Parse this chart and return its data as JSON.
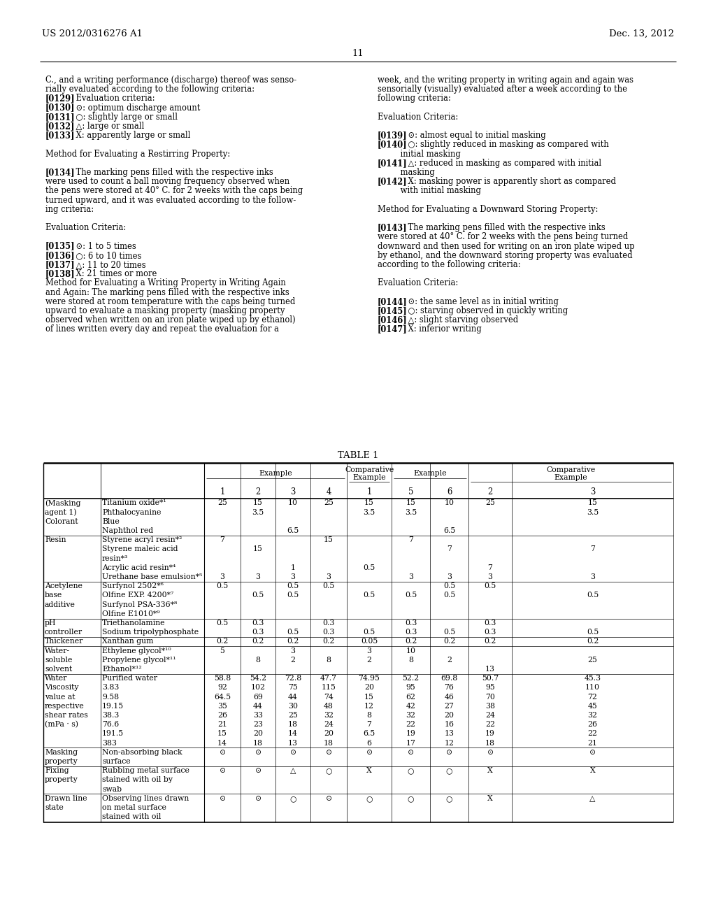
{
  "patent_number": "US 2012/0316276 A1",
  "date": "Dec. 13, 2012",
  "page_number": "11",
  "bg": "#ffffff",
  "left_col": [
    [
      "C., and a writing performance (discharge) thereof was senso-",
      "normal"
    ],
    [
      "rially evaluated according to the following criteria:",
      "normal"
    ],
    [
      "[0129]    Evaluation criteria:",
      "bold_bracket"
    ],
    [
      "[0130]    ⊙: optimum discharge amount",
      "bold_bracket"
    ],
    [
      "[0131]    ○: slightly large or small",
      "bold_bracket"
    ],
    [
      "[0132]    △: large or small",
      "bold_bracket"
    ],
    [
      "[0133]    X: apparently large or small",
      "bold_bracket"
    ],
    [
      "",
      "normal"
    ],
    [
      "Method for Evaluating a Restirring Property:",
      "normal"
    ],
    [
      "",
      "normal"
    ],
    [
      "[0134]    The marking pens filled with the respective inks",
      "bold_bracket"
    ],
    [
      "were used to count a ball moving frequency observed when",
      "normal"
    ],
    [
      "the pens were stored at 40° C. for 2 weeks with the caps being",
      "normal"
    ],
    [
      "turned upward, and it was evaluated according to the follow-",
      "normal"
    ],
    [
      "ing criteria:",
      "normal"
    ],
    [
      "",
      "normal"
    ],
    [
      "Evaluation Criteria:",
      "normal"
    ],
    [
      "",
      "normal"
    ],
    [
      "[0135]    ⊙: 1 to 5 times",
      "bold_bracket"
    ],
    [
      "[0136]    ○: 6 to 10 times",
      "bold_bracket"
    ],
    [
      "[0137]    △: 11 to 20 times",
      "bold_bracket"
    ],
    [
      "[0138]    X: 21 times or more",
      "bold_bracket"
    ],
    [
      "Method for Evaluating a Writing Property in Writing Again",
      "normal"
    ],
    [
      "and Again: The marking pens filled with the respective inks",
      "normal"
    ],
    [
      "were stored at room temperature with the caps being turned",
      "normal"
    ],
    [
      "upward to evaluate a masking property (masking property",
      "normal"
    ],
    [
      "observed when written on an iron plate wiped up by ethanol)",
      "normal"
    ],
    [
      "of lines written every day and repeat the evaluation for a",
      "normal"
    ]
  ],
  "right_col": [
    [
      "week, and the writing property in writing again and again was",
      "normal"
    ],
    [
      "sensorially (visually) evaluated after a week according to the",
      "normal"
    ],
    [
      "following criteria:",
      "normal"
    ],
    [
      "",
      "normal"
    ],
    [
      "Evaluation Criteria:",
      "normal"
    ],
    [
      "",
      "normal"
    ],
    [
      "[0139]    ⊙: almost equal to initial masking",
      "bold_bracket"
    ],
    [
      "[0140]    ○: slightly reduced in masking as compared with",
      "bold_bracket"
    ],
    [
      "         initial masking",
      "normal"
    ],
    [
      "[0141]    △: reduced in masking as compared with initial",
      "bold_bracket"
    ],
    [
      "         masking",
      "normal"
    ],
    [
      "[0142]    X: masking power is apparently short as compared",
      "bold_bracket"
    ],
    [
      "         with initial masking",
      "normal"
    ],
    [
      "",
      "normal"
    ],
    [
      "Method for Evaluating a Downward Storing Property:",
      "normal"
    ],
    [
      "",
      "normal"
    ],
    [
      "[0143]    The marking pens filled with the respective inks",
      "bold_bracket"
    ],
    [
      "were stored at 40° C. for 2 weeks with the pens being turned",
      "normal"
    ],
    [
      "downward and then used for writing on an iron plate wiped up",
      "normal"
    ],
    [
      "by ethanol, and the downward storing property was evaluated",
      "normal"
    ],
    [
      "according to the following criteria:",
      "normal"
    ],
    [
      "",
      "normal"
    ],
    [
      "Evaluation Criteria:",
      "normal"
    ],
    [
      "",
      "normal"
    ],
    [
      "[0144]    ⊙: the same level as in initial writing",
      "bold_bracket"
    ],
    [
      "[0145]    ○: starving observed in quickly writing",
      "bold_bracket"
    ],
    [
      "[0146]    △: slight starving observed",
      "bold_bracket"
    ],
    [
      "[0147]    X: inferior writing",
      "bold_bracket"
    ]
  ],
  "table_title": "TABLE 1",
  "col_nums": [
    "1",
    "2",
    "3",
    "4",
    "1",
    "5",
    "6",
    "2",
    "3"
  ],
  "table_rows": [
    {
      "l1": "(Masking",
      "l2": "Titanium oxide*¹",
      "v": [
        "25",
        "15",
        "10",
        "25",
        "15",
        "15",
        "10",
        "25",
        "15"
      ]
    },
    {
      "l1": "agent 1)",
      "l2": "Phthalocyanine",
      "v": [
        "",
        "3.5",
        "",
        "",
        "3.5",
        "3.5",
        "",
        "",
        "3.5"
      ]
    },
    {
      "l1": "Colorant",
      "l2": "Blue",
      "v": [
        "",
        "",
        "",
        "",
        "",
        "",
        "",
        "",
        ""
      ]
    },
    {
      "l1": "",
      "l2": "Naphthol red",
      "v": [
        "",
        "",
        "6.5",
        "",
        "",
        "",
        "6.5",
        "",
        ""
      ]
    },
    {
      "l1": "Resin",
      "l2": "Styrene acryl resin*²",
      "v": [
        "7",
        "",
        "",
        "15",
        "",
        "7",
        "",
        "",
        ""
      ]
    },
    {
      "l1": "",
      "l2": "Styrene maleic acid",
      "v": [
        "",
        "15",
        "",
        "",
        "",
        "",
        "7",
        "",
        "7"
      ]
    },
    {
      "l1": "",
      "l2": "resin*³",
      "v": [
        "",
        "",
        "",
        "",
        "",
        "",
        "",
        "",
        ""
      ]
    },
    {
      "l1": "",
      "l2": "Acrylic acid resin*⁴",
      "v": [
        "",
        "",
        "1",
        "",
        "0.5",
        "",
        "",
        "7",
        ""
      ]
    },
    {
      "l1": "",
      "l2": "Urethane base emulsion*⁵",
      "v": [
        "3",
        "3",
        "3",
        "3",
        "",
        "3",
        "3",
        "3",
        "3"
      ]
    },
    {
      "l1": "Acetylene",
      "l2": "Surfynol 2502*⁶",
      "v": [
        "0.5",
        "",
        "0.5",
        "0.5",
        "",
        "",
        "0.5",
        "0.5",
        ""
      ]
    },
    {
      "l1": "base",
      "l2": "Olfine EXP. 4200*⁷",
      "v": [
        "",
        "0.5",
        "0.5",
        "",
        "0.5",
        "0.5",
        "0.5",
        "",
        "0.5"
      ]
    },
    {
      "l1": "additive",
      "l2": "Surfynol PSA-336*⁸",
      "v": [
        "",
        "",
        "",
        "",
        "",
        "",
        "",
        "",
        ""
      ]
    },
    {
      "l1": "",
      "l2": "Olfine E1010*⁹",
      "v": [
        "",
        "",
        "",
        "",
        "",
        "",
        "",
        "",
        ""
      ]
    },
    {
      "l1": "pH",
      "l2": "Triethanolamine",
      "v": [
        "0.5",
        "0.3",
        "",
        "0.3",
        "",
        "0.3",
        "",
        "0.3",
        ""
      ]
    },
    {
      "l1": "controller",
      "l2": "Sodium tripolyphosphate",
      "v": [
        "",
        "0.3",
        "0.5",
        "0.3",
        "0.5",
        "0.3",
        "0.5",
        "0.3",
        "0.5"
      ]
    },
    {
      "l1": "Thickener",
      "l2": "Xanthan gum",
      "v": [
        "0.2",
        "0.2",
        "0.2",
        "0.2",
        "0.05",
        "0.2",
        "0.2",
        "0.2",
        "0.2"
      ]
    },
    {
      "l1": "Water-",
      "l2": "Ethylene glycol*¹⁰",
      "v": [
        "5",
        "",
        "3",
        "",
        "3",
        "10",
        "",
        "",
        ""
      ]
    },
    {
      "l1": "soluble",
      "l2": "Propylene glycol*¹¹",
      "v": [
        "",
        "8",
        "2",
        "8",
        "2",
        "8",
        "2",
        "",
        "25"
      ]
    },
    {
      "l1": "solvent",
      "l2": "Ethanol*¹²",
      "v": [
        "",
        "",
        "",
        "",
        "",
        "",
        "",
        "13",
        ""
      ]
    },
    {
      "l1": "Water",
      "l2": "Purified water",
      "v": [
        "58.8",
        "54.2",
        "72.8",
        "47.7",
        "74.95",
        "52.2",
        "69.8",
        "50.7",
        "45.3"
      ]
    },
    {
      "l1": "Viscosity",
      "l2": "3.83",
      "v": [
        "92",
        "102",
        "75",
        "115",
        "20",
        "95",
        "76",
        "95",
        "110"
      ]
    },
    {
      "l1": "value at",
      "l2": "9.58",
      "v": [
        "64.5",
        "69",
        "44",
        "74",
        "15",
        "62",
        "46",
        "70",
        "72"
      ]
    },
    {
      "l1": "respective",
      "l2": "19.15",
      "v": [
        "35",
        "44",
        "30",
        "48",
        "12",
        "42",
        "27",
        "38",
        "45"
      ]
    },
    {
      "l1": "shear rates",
      "l2": "38.3",
      "v": [
        "26",
        "33",
        "25",
        "32",
        "8",
        "32",
        "20",
        "24",
        "32"
      ]
    },
    {
      "l1": "(mPa · s)",
      "l2": "76.6",
      "v": [
        "21",
        "23",
        "18",
        "24",
        "7",
        "22",
        "16",
        "22",
        "26"
      ]
    },
    {
      "l1": "",
      "l2": "191.5",
      "v": [
        "15",
        "20",
        "14",
        "20",
        "6.5",
        "19",
        "13",
        "19",
        "22"
      ]
    },
    {
      "l1": "",
      "l2": "383",
      "v": [
        "14",
        "18",
        "13",
        "18",
        "6",
        "17",
        "12",
        "18",
        "21"
      ]
    },
    {
      "l1": "Masking",
      "l2": "Non-absorbing black",
      "v": [
        "⊙",
        "⊙",
        "⊙",
        "⊙",
        "⊙",
        "⊙",
        "⊙",
        "⊙",
        "⊙"
      ]
    },
    {
      "l1": "property",
      "l2": "surface",
      "v": [
        "",
        "",
        "",
        "",
        "",
        "",
        "",
        "",
        ""
      ]
    },
    {
      "l1": "Fixing",
      "l2": "Rubbing metal surface",
      "v": [
        "⊙",
        "⊙",
        "△",
        "○",
        "X",
        "○",
        "○",
        "X",
        "X"
      ]
    },
    {
      "l1": "property",
      "l2": "stained with oil by",
      "v": [
        "",
        "",
        "",
        "",
        "",
        "",
        "",
        "",
        ""
      ]
    },
    {
      "l1": "",
      "l2": "swab",
      "v": [
        "",
        "",
        "",
        "",
        "",
        "",
        "",
        "",
        ""
      ]
    },
    {
      "l1": "Drawn line",
      "l2": "Observing lines drawn",
      "v": [
        "⊙",
        "⊙",
        "○",
        "⊙",
        "○",
        "○",
        "○",
        "X",
        "△"
      ]
    },
    {
      "l1": "state",
      "l2": "on metal surface",
      "v": [
        "",
        "",
        "",
        "",
        "",
        "",
        "",
        "",
        ""
      ]
    },
    {
      "l1": "",
      "l2": "stained with oil",
      "v": [
        "",
        "",
        "",
        "",
        "",
        "",
        "",
        "",
        ""
      ]
    }
  ],
  "section_sep_before": [
    4,
    9,
    13,
    15,
    16,
    19,
    27,
    29,
    32
  ]
}
